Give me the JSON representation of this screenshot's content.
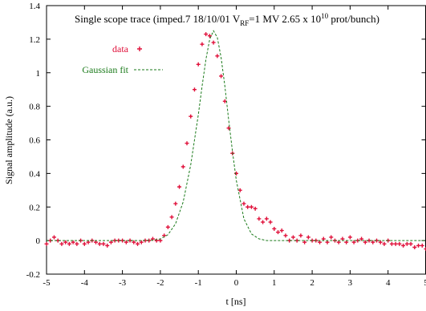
{
  "chart_data": {
    "type": "scatter",
    "title_parts": {
      "prefix": "Single scope trace (imped.7 18/10/01   V",
      "sub": "RF",
      "middle": "=1 MV  2.65 x 10",
      "sup": "10",
      "suffix": "  prot/bunch)"
    },
    "xlabel": "t  [ns]",
    "ylabel": "Signal amplitude (a.u.)",
    "xlim": [
      -5,
      5
    ],
    "ylim": [
      -0.2,
      1.4
    ],
    "xticks": [
      "-5",
      "-4",
      "-3",
      "-2",
      "-1",
      "0",
      "1",
      "2",
      "3",
      "4",
      "5"
    ],
    "yticks": [
      "-0.2",
      "0",
      "0.2",
      "0.4",
      "0.6",
      "0.8",
      "1",
      "1.2",
      "1.4"
    ],
    "grid": false,
    "legend_position": "top-left",
    "series": [
      {
        "name": "data",
        "style": "points",
        "color": "#e0103a",
        "x": [
          -5.0,
          -4.9,
          -4.8,
          -4.7,
          -4.6,
          -4.5,
          -4.4,
          -4.3,
          -4.2,
          -4.1,
          -4.0,
          -3.9,
          -3.8,
          -3.7,
          -3.6,
          -3.5,
          -3.4,
          -3.3,
          -3.2,
          -3.1,
          -3.0,
          -2.9,
          -2.8,
          -2.7,
          -2.6,
          -2.5,
          -2.4,
          -2.3,
          -2.2,
          -2.1,
          -2.0,
          -1.9,
          -1.8,
          -1.7,
          -1.6,
          -1.5,
          -1.4,
          -1.3,
          -1.2,
          -1.1,
          -1.0,
          -0.9,
          -0.8,
          -0.7,
          -0.6,
          -0.5,
          -0.4,
          -0.3,
          -0.2,
          -0.1,
          0.0,
          0.1,
          0.2,
          0.3,
          0.4,
          0.5,
          0.6,
          0.7,
          0.8,
          0.9,
          1.0,
          1.1,
          1.2,
          1.3,
          1.4,
          1.5,
          1.6,
          1.7,
          1.8,
          1.9,
          2.0,
          2.1,
          2.2,
          2.3,
          2.4,
          2.5,
          2.6,
          2.7,
          2.8,
          2.9,
          3.0,
          3.1,
          3.2,
          3.3,
          3.4,
          3.5,
          3.6,
          3.7,
          3.8,
          3.9,
          4.0,
          4.1,
          4.2,
          4.3,
          4.4,
          4.5,
          4.6,
          4.7,
          4.8,
          4.9,
          5.0
        ],
        "y": [
          -0.02,
          0.0,
          0.02,
          0.0,
          -0.02,
          -0.01,
          -0.02,
          -0.01,
          -0.02,
          0.0,
          -0.02,
          -0.01,
          0.0,
          -0.01,
          -0.02,
          -0.02,
          -0.03,
          -0.01,
          0.0,
          0.0,
          0.0,
          -0.01,
          0.0,
          -0.01,
          -0.02,
          -0.01,
          0.0,
          0.0,
          0.01,
          0.0,
          0.0,
          0.03,
          0.08,
          0.14,
          0.22,
          0.32,
          0.44,
          0.58,
          0.74,
          0.9,
          1.05,
          1.17,
          1.23,
          1.22,
          1.18,
          1.1,
          0.98,
          0.83,
          0.67,
          0.52,
          0.4,
          0.3,
          0.22,
          0.2,
          0.2,
          0.19,
          0.13,
          0.11,
          0.13,
          0.11,
          0.07,
          0.05,
          0.06,
          0.03,
          0.0,
          0.02,
          0.0,
          0.03,
          -0.01,
          0.02,
          0.0,
          0.0,
          -0.01,
          0.01,
          -0.01,
          0.02,
          0.0,
          -0.01,
          0.01,
          -0.01,
          0.02,
          -0.01,
          0.0,
          0.01,
          -0.01,
          0.0,
          -0.01,
          0.0,
          -0.01,
          -0.02,
          0.0,
          -0.02,
          -0.02,
          -0.02,
          -0.03,
          -0.02,
          -0.02,
          -0.04,
          -0.03,
          -0.03,
          -0.05
        ]
      },
      {
        "name": "Gaussian fit",
        "style": "dashed-line",
        "color": "#1a7a1a",
        "x": [
          -5.0,
          -4.0,
          -3.0,
          -2.5,
          -2.2,
          -2.0,
          -1.8,
          -1.6,
          -1.4,
          -1.2,
          -1.0,
          -0.9,
          -0.8,
          -0.7,
          -0.6,
          -0.5,
          -0.4,
          -0.3,
          -0.2,
          -0.1,
          0.0,
          0.2,
          0.4,
          0.6,
          0.8,
          1.0,
          1.2,
          1.4,
          1.6,
          2.0,
          3.0,
          4.0,
          5.0
        ],
        "y": [
          0.0,
          0.0,
          0.0,
          0.0,
          0.002,
          0.01,
          0.035,
          0.1,
          0.23,
          0.45,
          0.75,
          0.92,
          1.08,
          1.2,
          1.25,
          1.21,
          1.09,
          0.92,
          0.72,
          0.53,
          0.36,
          0.13,
          0.04,
          0.01,
          0.0,
          0.0,
          0.0,
          0.0,
          0.0,
          0.0,
          0.0,
          0.0,
          0.0
        ]
      }
    ]
  }
}
